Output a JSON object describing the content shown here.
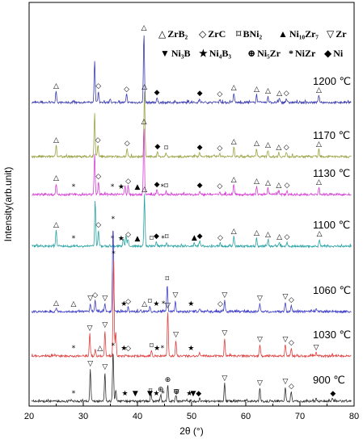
{
  "chart_data": {
    "type": "line",
    "xlabel": "2θ (°)",
    "ylabel": "Intensity(arb.unit)",
    "xlim": [
      20,
      80
    ],
    "x_ticks": [
      "20",
      "30",
      "40",
      "50",
      "60",
      "70",
      "80"
    ],
    "grid": false,
    "legend_position": "top-right",
    "legend": [
      {
        "symbol": "△",
        "label": "ZrB₂"
      },
      {
        "symbol": "◇",
        "label": "ZrC"
      },
      {
        "symbol": "⌑",
        "label": "BNi₂"
      },
      {
        "symbol": "▲",
        "label": "Ni₁₀Zr₇"
      },
      {
        "symbol": "▽",
        "label": "Zr"
      },
      {
        "symbol": "▼",
        "label": "Ni₃B"
      },
      {
        "symbol": "★",
        "label": "Ni₄B₃"
      },
      {
        "symbol": "⊕",
        "label": "Ni₅Zr"
      },
      {
        "symbol": "*",
        "label": "NiZr"
      },
      {
        "symbol": "◆",
        "label": "Ni"
      }
    ],
    "series": [
      {
        "name": "1200 ℃",
        "color": "#3b3bb0",
        "baseline_rel": 0.8,
        "peaks": [
          [
            25.0,
            14
          ],
          [
            32.1,
            52
          ],
          [
            32.8,
            14
          ],
          [
            35.0,
            4
          ],
          [
            38.0,
            10
          ],
          [
            41.2,
            86
          ],
          [
            43.6,
            6
          ],
          [
            51.5,
            5
          ],
          [
            55.2,
            4
          ],
          [
            57.8,
            12
          ],
          [
            62.0,
            10
          ],
          [
            64.1,
            8
          ],
          [
            66.2,
            5
          ],
          [
            67.5,
            5
          ],
          [
            73.5,
            9
          ]
        ],
        "markers": [
          [
            25.0,
            "△"
          ],
          [
            32.8,
            "◇"
          ],
          [
            38.0,
            "◇"
          ],
          [
            41.2,
            "△"
          ],
          [
            43.6,
            "◆"
          ],
          [
            51.5,
            "◆"
          ],
          [
            55.2,
            "◇"
          ],
          [
            57.8,
            "△"
          ],
          [
            62.0,
            "△"
          ],
          [
            64.1,
            "△"
          ],
          [
            66.2,
            "△"
          ],
          [
            67.5,
            "◇"
          ],
          [
            73.5,
            "△"
          ]
        ]
      },
      {
        "name": "1170 ℃",
        "color": "#9aa243",
        "baseline_rel": 0.8,
        "peaks": [
          [
            25.0,
            14
          ],
          [
            32.1,
            52
          ],
          [
            32.7,
            14
          ],
          [
            38.1,
            10
          ],
          [
            41.3,
            80
          ],
          [
            43.7,
            6
          ],
          [
            45.3,
            4
          ],
          [
            51.5,
            5
          ],
          [
            55.2,
            4
          ],
          [
            57.8,
            12
          ],
          [
            62.0,
            10
          ],
          [
            64.1,
            8
          ],
          [
            66.1,
            5
          ],
          [
            67.5,
            5
          ],
          [
            73.5,
            9
          ]
        ],
        "markers": [
          [
            25.0,
            "△"
          ],
          [
            32.7,
            "◇"
          ],
          [
            38.1,
            "◇"
          ],
          [
            41.3,
            "△"
          ],
          [
            43.7,
            "◆"
          ],
          [
            45.3,
            "⌑"
          ],
          [
            51.5,
            "◆"
          ],
          [
            55.2,
            "◇"
          ],
          [
            57.8,
            "△"
          ],
          [
            62.0,
            "△"
          ],
          [
            64.1,
            "△"
          ],
          [
            66.1,
            "△"
          ],
          [
            67.5,
            "◇"
          ],
          [
            73.5,
            "△"
          ]
        ]
      },
      {
        "name": "1130 ℃",
        "color": "#d63cd6",
        "baseline_rel": 0.8,
        "peaks": [
          [
            25.0,
            14
          ],
          [
            32.1,
            50
          ],
          [
            32.8,
            16
          ],
          [
            37.7,
            12
          ],
          [
            38.3,
            10
          ],
          [
            41.2,
            84
          ],
          [
            43.6,
            6
          ],
          [
            45.3,
            4
          ],
          [
            51.5,
            5
          ],
          [
            55.2,
            4
          ],
          [
            57.8,
            12
          ],
          [
            62.0,
            10
          ],
          [
            64.1,
            8
          ],
          [
            66.1,
            5
          ],
          [
            67.6,
            5
          ],
          [
            73.5,
            9
          ]
        ],
        "markers": [
          [
            25.0,
            "△"
          ],
          [
            28.2,
            "*"
          ],
          [
            32.8,
            "◇"
          ],
          [
            35.4,
            "*"
          ],
          [
            37.0,
            "★"
          ],
          [
            38.3,
            "◇"
          ],
          [
            40.0,
            "▲"
          ],
          [
            41.2,
            "△"
          ],
          [
            43.6,
            "◆"
          ],
          [
            44.6,
            "*"
          ],
          [
            45.3,
            "⌑"
          ],
          [
            51.5,
            "◆"
          ],
          [
            55.2,
            "◇"
          ],
          [
            57.8,
            "△"
          ],
          [
            62.0,
            "△"
          ],
          [
            64.1,
            "△"
          ],
          [
            66.1,
            "△"
          ],
          [
            67.6,
            "◇"
          ],
          [
            73.5,
            "△"
          ]
        ]
      },
      {
        "name": "1100 ℃",
        "color": "#2aa3a3",
        "baseline_rel": 0.8,
        "peaks": [
          [
            25.0,
            20
          ],
          [
            32.2,
            56
          ],
          [
            32.8,
            20
          ],
          [
            37.4,
            10
          ],
          [
            37.9,
            14
          ],
          [
            38.3,
            8
          ],
          [
            41.3,
            64
          ],
          [
            43.5,
            6
          ],
          [
            45.4,
            5
          ],
          [
            50.5,
            4
          ],
          [
            51.5,
            6
          ],
          [
            55.3,
            4
          ],
          [
            57.8,
            12
          ],
          [
            62.0,
            10
          ],
          [
            64.1,
            8
          ],
          [
            66.2,
            5
          ],
          [
            67.6,
            5
          ],
          [
            73.6,
            9
          ]
        ],
        "markers": [
          [
            25.0,
            "△"
          ],
          [
            28.2,
            "*"
          ],
          [
            32.8,
            "◇"
          ],
          [
            35.4,
            "*"
          ],
          [
            37.0,
            "★"
          ],
          [
            38.3,
            "◇"
          ],
          [
            40.0,
            "▲"
          ],
          [
            41.3,
            "△"
          ],
          [
            42.6,
            "⌑"
          ],
          [
            43.5,
            "◆"
          ],
          [
            44.7,
            "*"
          ],
          [
            45.4,
            "⌑"
          ],
          [
            50.5,
            "▲"
          ],
          [
            51.5,
            "◆"
          ],
          [
            55.3,
            "◇"
          ],
          [
            57.8,
            "△"
          ],
          [
            62.0,
            "△"
          ],
          [
            64.1,
            "△"
          ],
          [
            66.2,
            "△"
          ],
          [
            67.6,
            "◇"
          ],
          [
            73.6,
            "△"
          ]
        ]
      },
      {
        "name": "1060 ℃",
        "color": "#3f3fc8",
        "baseline_rel": 0.8,
        "peaks": [
          [
            25.0,
            4
          ],
          [
            31.3,
            10
          ],
          [
            32.2,
            14
          ],
          [
            34.0,
            10
          ],
          [
            35.5,
            108
          ],
          [
            38.3,
            6
          ],
          [
            42.3,
            6
          ],
          [
            45.5,
            34
          ],
          [
            47.0,
            14
          ],
          [
            51.5,
            4
          ],
          [
            56.1,
            14
          ],
          [
            62.6,
            10
          ],
          [
            67.3,
            12
          ],
          [
            68.4,
            8
          ],
          [
            73.0,
            4
          ]
        ],
        "markers": [
          [
            25.0,
            "△"
          ],
          [
            28.2,
            "△"
          ],
          [
            31.3,
            "▽"
          ],
          [
            32.2,
            "◇"
          ],
          [
            34.0,
            "▽"
          ],
          [
            35.5,
            "*"
          ],
          [
            37.5,
            "★"
          ],
          [
            38.3,
            "◇"
          ],
          [
            41.3,
            "△"
          ],
          [
            42.3,
            "⌑"
          ],
          [
            43.5,
            "★"
          ],
          [
            44.8,
            "*"
          ],
          [
            45.5,
            "⌑"
          ],
          [
            47.0,
            "▽"
          ],
          [
            49.9,
            "★"
          ],
          [
            55.3,
            "◇"
          ],
          [
            56.1,
            "▽"
          ],
          [
            62.6,
            "▽"
          ],
          [
            67.3,
            "▽"
          ],
          [
            68.4,
            "◇"
          ]
        ]
      },
      {
        "name": "1030 ℃",
        "color": "#e04040",
        "baseline_rel": 0.8,
        "peaks": [
          [
            31.2,
            28
          ],
          [
            32.2,
            8
          ],
          [
            34.0,
            32
          ],
          [
            35.6,
            120
          ],
          [
            36.0,
            30
          ],
          [
            42.6,
            6
          ],
          [
            45.6,
            56
          ],
          [
            47.1,
            20
          ],
          [
            51.5,
            4
          ],
          [
            56.1,
            22
          ],
          [
            62.6,
            14
          ],
          [
            67.3,
            14
          ],
          [
            68.4,
            10
          ],
          [
            73.0,
            4
          ]
        ],
        "markers": [
          [
            28.2,
            "*"
          ],
          [
            31.2,
            "▽"
          ],
          [
            33.1,
            "△"
          ],
          [
            34.0,
            "▽"
          ],
          [
            35.6,
            "*"
          ],
          [
            37.5,
            "★"
          ],
          [
            38.3,
            "◇"
          ],
          [
            42.6,
            "⌑"
          ],
          [
            43.6,
            "★"
          ],
          [
            44.6,
            "*"
          ],
          [
            45.6,
            "▽"
          ],
          [
            47.1,
            "▽"
          ],
          [
            49.9,
            "★"
          ],
          [
            56.1,
            "▽"
          ],
          [
            62.6,
            "▽"
          ],
          [
            67.3,
            "▽"
          ],
          [
            68.4,
            "◇"
          ],
          [
            73.0,
            "▽"
          ]
        ]
      },
      {
        "name": "900 ℃",
        "color": "#303030",
        "baseline_rel": 0.8,
        "peaks": [
          [
            31.3,
            40
          ],
          [
            34.0,
            36
          ],
          [
            35.5,
            62
          ],
          [
            36.0,
            14
          ],
          [
            42.5,
            10
          ],
          [
            44.3,
            8
          ],
          [
            45.6,
            20
          ],
          [
            47.1,
            8
          ],
          [
            51.5,
            4
          ],
          [
            56.1,
            22
          ],
          [
            62.6,
            16
          ],
          [
            67.3,
            18
          ],
          [
            68.4,
            12
          ],
          [
            73.0,
            4
          ],
          [
            76.0,
            4
          ]
        ],
        "markers": [
          [
            28.2,
            "*"
          ],
          [
            31.3,
            "▽"
          ],
          [
            34.0,
            "▽"
          ],
          [
            35.5,
            "*"
          ],
          [
            37.7,
            "★"
          ],
          [
            39.6,
            "▼"
          ],
          [
            42.4,
            "⌑"
          ],
          [
            42.3,
            "▼"
          ],
          [
            44.3,
            "⊕"
          ],
          [
            43.5,
            "★"
          ],
          [
            45.6,
            "⊕"
          ],
          [
            44.7,
            "*"
          ],
          [
            47.2,
            "⊕"
          ],
          [
            47.2,
            "▽"
          ],
          [
            49.6,
            "★"
          ],
          [
            50.3,
            "▼"
          ],
          [
            51.3,
            "◆"
          ],
          [
            56.1,
            "▽"
          ],
          [
            62.6,
            "▽"
          ],
          [
            67.3,
            "▽"
          ],
          [
            68.4,
            "◇"
          ],
          [
            76.1,
            "◆"
          ]
        ]
      }
    ]
  }
}
